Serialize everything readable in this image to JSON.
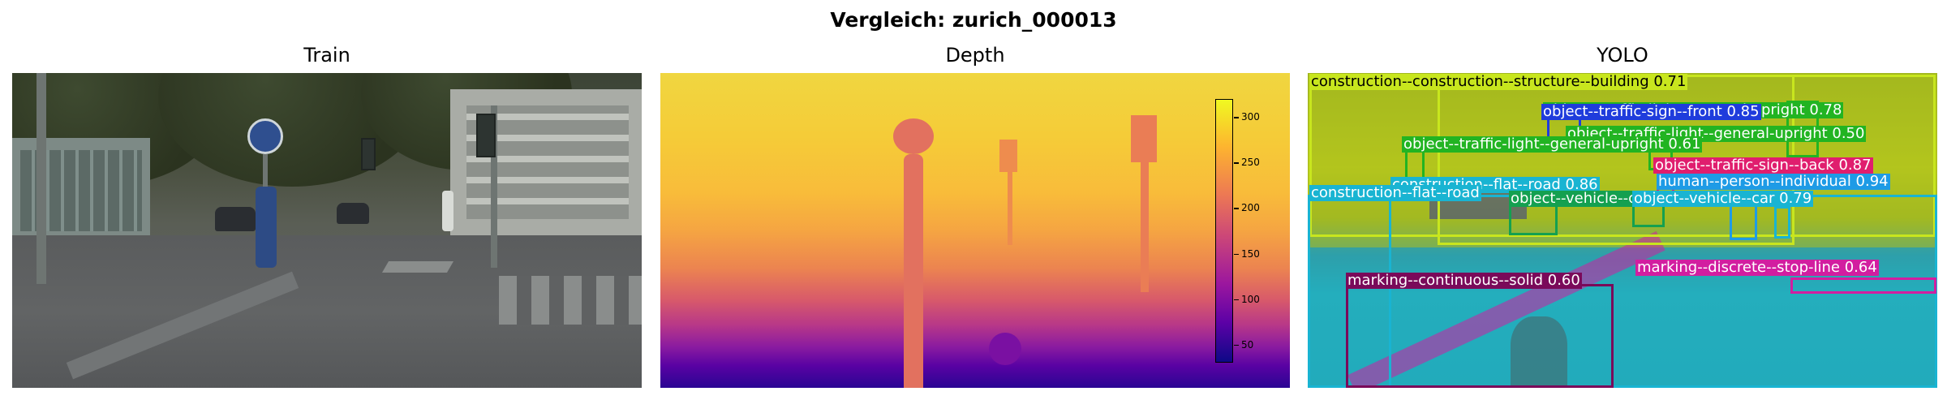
{
  "suptitle": "Vergleich: zurich_000013",
  "panels": {
    "train": {
      "title": "Train"
    },
    "depth": {
      "title": "Depth"
    },
    "yolo": {
      "title": "YOLO"
    }
  },
  "colorbar": {
    "colormap": "plasma",
    "range": [
      30,
      320
    ],
    "ticks": [
      "300",
      "250",
      "200",
      "150",
      "100",
      "50"
    ]
  },
  "detections": [
    {
      "label": "construction--construction--structure--building 0.71",
      "color": "#c8e61e"
    },
    {
      "label": "object--traffic-sign--front 0.85",
      "color": "#1f3cdc"
    },
    {
      "label": "object--traffic-light--general-upright 0.78",
      "color": "#22b422"
    },
    {
      "label": "object--traffic-light--general-upright 0.50",
      "color": "#22b422"
    },
    {
      "label": "object--traffic-light--general-upright 0.61",
      "color": "#22b422"
    },
    {
      "label": "object--traffic-sign--back 0.87",
      "color": "#e01e6e"
    },
    {
      "label": "construction--flat--road 0.86",
      "color": "#19b4d2"
    },
    {
      "label": "human--person--individual 0.94",
      "color": "#1e9be6"
    },
    {
      "label": "construction--flat--road",
      "color": "#19b4d2"
    },
    {
      "label": "object--vehicle--car 0.81",
      "color": "#14a050"
    },
    {
      "label": "object--vehicle--car 0.79",
      "color": "#19b4d2"
    },
    {
      "label": "marking--discrete--stop-line 0.64",
      "color": "#d21ea0"
    },
    {
      "label": "marking--continuous--solid 0.60",
      "color": "#7a0a5a"
    }
  ]
}
